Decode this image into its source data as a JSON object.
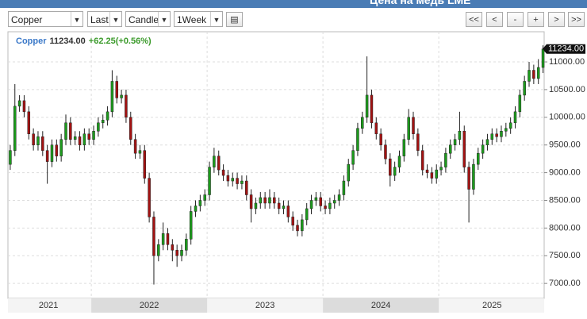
{
  "header": {
    "title": "Цена на медь LME"
  },
  "toolbar": {
    "symbol": "Copper",
    "price_field": "Last",
    "chart_style": "Candle",
    "period": "1Week",
    "nav": [
      "<<",
      "<",
      "-",
      "+",
      ">",
      ">>"
    ]
  },
  "chart_data": {
    "type": "candlestick",
    "name": "Copper",
    "last_price": {
      "value": 11234,
      "label": "11234.00"
    },
    "change": "+62.25(+0.56%)",
    "up_color": "#1c9b1c",
    "down_color": "#a31212",
    "grid": true,
    "xlim": [
      2021.28,
      2025.91
    ],
    "ylim": [
      6730,
      11545
    ],
    "xticks": [
      {
        "value": 2021.63,
        "label": "2021"
      },
      {
        "value": 2022.5,
        "label": "2022"
      },
      {
        "value": 2023.5,
        "label": "2023"
      },
      {
        "value": 2024.5,
        "label": "2024"
      },
      {
        "value": 2025.46,
        "label": "2025"
      }
    ],
    "yticks": [
      {
        "value": 7000,
        "label": "7000.00"
      },
      {
        "value": 7500,
        "label": "7500.00"
      },
      {
        "value": 8000,
        "label": "8000.00"
      },
      {
        "value": 8500,
        "label": "8500.00"
      },
      {
        "value": 9000,
        "label": "9000.00"
      },
      {
        "value": 9500,
        "label": "9500.00"
      },
      {
        "value": 10000,
        "label": "10000.00"
      },
      {
        "value": 10500,
        "label": "10500.00"
      },
      {
        "value": 11000,
        "label": "11000.00"
      }
    ],
    "x": [
      2021.3,
      2021.34,
      2021.38,
      2021.42,
      2021.46,
      2021.5,
      2021.54,
      2021.58,
      2021.62,
      2021.66,
      2021.7,
      2021.74,
      2021.78,
      2021.82,
      2021.86,
      2021.9,
      2021.94,
      2021.98,
      2022.02,
      2022.06,
      2022.1,
      2022.14,
      2022.18,
      2022.22,
      2022.26,
      2022.3,
      2022.34,
      2022.38,
      2022.42,
      2022.46,
      2022.5,
      2022.54,
      2022.58,
      2022.62,
      2022.66,
      2022.7,
      2022.74,
      2022.78,
      2022.82,
      2022.86,
      2022.9,
      2022.94,
      2022.98,
      2023.02,
      2023.06,
      2023.1,
      2023.14,
      2023.18,
      2023.22,
      2023.26,
      2023.3,
      2023.34,
      2023.38,
      2023.42,
      2023.46,
      2023.5,
      2023.54,
      2023.58,
      2023.62,
      2023.66,
      2023.7,
      2023.74,
      2023.78,
      2023.82,
      2023.86,
      2023.9,
      2023.94,
      2023.98,
      2024.02,
      2024.06,
      2024.1,
      2024.14,
      2024.18,
      2024.22,
      2024.26,
      2024.3,
      2024.34,
      2024.38,
      2024.42,
      2024.46,
      2024.5,
      2024.54,
      2024.58,
      2024.62,
      2024.66,
      2024.7,
      2024.74,
      2024.78,
      2024.82,
      2024.86,
      2024.9,
      2024.94,
      2024.98,
      2025.02,
      2025.06,
      2025.1,
      2025.14,
      2025.18,
      2025.22,
      2025.26,
      2025.3,
      2025.34,
      2025.38,
      2025.42,
      2025.46,
      2025.5,
      2025.54,
      2025.58,
      2025.62,
      2025.66,
      2025.7,
      2025.74,
      2025.78,
      2025.82,
      2025.86,
      2025.9
    ],
    "open": [
      9150,
      9400,
      10200,
      10300,
      10100,
      9700,
      9500,
      9650,
      9400,
      9200,
      9500,
      9300,
      9600,
      9900,
      9600,
      9650,
      9500,
      9700,
      9600,
      9750,
      9900,
      9950,
      10100,
      10650,
      10350,
      10400,
      10000,
      9600,
      9350,
      9400,
      8900,
      8200,
      7500,
      7700,
      7900,
      7700,
      7600,
      7500,
      7600,
      7800,
      8300,
      8400,
      8500,
      8600,
      9100,
      9300,
      9050,
      8950,
      8850,
      8900,
      8800,
      8850,
      8600,
      8350,
      8450,
      8550,
      8450,
      8550,
      8450,
      8350,
      8400,
      8200,
      8050,
      7950,
      8150,
      8350,
      8500,
      8550,
      8400,
      8350,
      8450,
      8500,
      8600,
      8850,
      9150,
      9400,
      9800,
      10000,
      10400,
      9900,
      9700,
      9500,
      9250,
      8950,
      9100,
      9300,
      9600,
      10000,
      9700,
      9400,
      9050,
      9000,
      8900,
      9050,
      9100,
      9350,
      9500,
      9600,
      9750,
      9100,
      8700,
      9150,
      9350,
      9500,
      9600,
      9700,
      9650,
      9750,
      9800,
      9900,
      10100,
      10400,
      10650,
      10850,
      10700,
      10900
    ],
    "high": [
      9500,
      10600,
      10400,
      10400,
      10200,
      9800,
      9750,
      9750,
      9500,
      9600,
      9600,
      9700,
      10050,
      10000,
      9750,
      9750,
      9800,
      9800,
      9850,
      10000,
      10050,
      10200,
      10850,
      10750,
      10500,
      10500,
      10100,
      9700,
      9500,
      9500,
      9000,
      8300,
      7800,
      8100,
      8000,
      7800,
      7700,
      7700,
      7900,
      8400,
      8500,
      8600,
      8700,
      9200,
      9450,
      9400,
      9150,
      9050,
      9000,
      9000,
      8950,
      8950,
      8700,
      8550,
      8650,
      8650,
      8700,
      8650,
      8550,
      8500,
      8500,
      8300,
      8150,
      8250,
      8450,
      8600,
      8650,
      8650,
      8500,
      8550,
      8600,
      8700,
      8950,
      9250,
      9500,
      9900,
      10100,
      11100,
      10500,
      10000,
      9800,
      9600,
      9350,
      9200,
      9400,
      9700,
      10150,
      10100,
      9800,
      9500,
      9150,
      9100,
      9150,
      9200,
      9450,
      9600,
      9700,
      10100,
      9850,
      9200,
      9250,
      9450,
      9600,
      9700,
      9800,
      9800,
      9850,
      9900,
      10000,
      10200,
      10500,
      10750,
      11000,
      10950,
      11050,
      11300
    ],
    "low": [
      9050,
      9300,
      10100,
      10000,
      9600,
      9400,
      9400,
      9300,
      8800,
      9100,
      9200,
      9200,
      9500,
      9500,
      9500,
      9400,
      9400,
      9500,
      9500,
      9650,
      9800,
      9850,
      10000,
      10250,
      10250,
      9900,
      9500,
      9250,
      9250,
      8800,
      8100,
      6980,
      7400,
      7600,
      7600,
      7400,
      7300,
      7400,
      7500,
      7700,
      8200,
      8300,
      8400,
      8500,
      9000,
      8950,
      8850,
      8750,
      8750,
      8700,
      8700,
      8500,
      8100,
      8250,
      8350,
      8350,
      8350,
      8350,
      8250,
      8250,
      8100,
      7950,
      7850,
      7850,
      8050,
      8250,
      8400,
      8300,
      8250,
      8250,
      8350,
      8400,
      8500,
      8750,
      9050,
      9300,
      9700,
      9900,
      9800,
      9600,
      9400,
      9150,
      8750,
      8850,
      9000,
      9200,
      9500,
      9600,
      9300,
      8950,
      8900,
      8800,
      8800,
      8950,
      9000,
      9250,
      9400,
      9500,
      9000,
      8100,
      8600,
      9050,
      9250,
      9400,
      9500,
      9550,
      9550,
      9650,
      9700,
      9800,
      10000,
      10300,
      10550,
      10600,
      10600,
      10800
    ],
    "close": [
      9400,
      10200,
      10300,
      10100,
      9700,
      9500,
      9650,
      9400,
      9200,
      9500,
      9300,
      9600,
      9900,
      9600,
      9650,
      9500,
      9700,
      9600,
      9750,
      9900,
      9950,
      10100,
      10650,
      10350,
      10400,
      10000,
      9600,
      9350,
      9400,
      8900,
      8200,
      7500,
      7700,
      7900,
      7700,
      7600,
      7500,
      7600,
      7800,
      8300,
      8400,
      8500,
      8600,
      9100,
      9300,
      9050,
      8950,
      8850,
      8900,
      8800,
      8850,
      8600,
      8350,
      8450,
      8550,
      8450,
      8550,
      8450,
      8350,
      8400,
      8200,
      8050,
      7950,
      8150,
      8350,
      8500,
      8550,
      8400,
      8350,
      8450,
      8500,
      8600,
      8850,
      9150,
      9400,
      9800,
      10000,
      10400,
      9900,
      9700,
      9500,
      9250,
      8950,
      9100,
      9300,
      9600,
      10000,
      9700,
      9400,
      9050,
      9000,
      8900,
      9050,
      9100,
      9350,
      9500,
      9600,
      9750,
      9100,
      8700,
      9150,
      9350,
      9500,
      9600,
      9700,
      9650,
      9750,
      9800,
      9900,
      10100,
      10400,
      10650,
      10850,
      10700,
      10900,
      11234
    ]
  }
}
